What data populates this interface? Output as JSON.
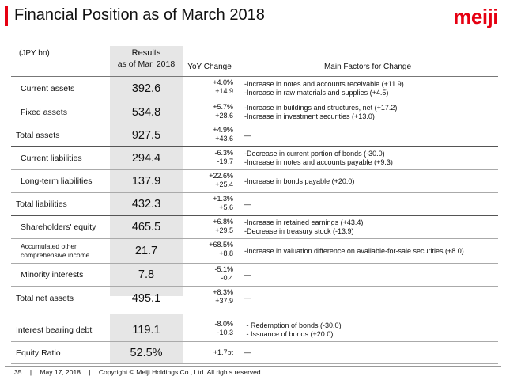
{
  "header": {
    "title": "Financial Position as of March 2018",
    "logo": "meiji"
  },
  "table": {
    "unit": "(JPY bn)",
    "col_results": "Results",
    "col_results_sub": "as of Mar. 2018",
    "col_yoy": "YoY Change",
    "col_factors": "Main Factors for Change",
    "rows": [
      {
        "label": "Current assets",
        "value": "392.6",
        "yoy_pct": "+4.0%",
        "yoy_abs": "+14.9",
        "factors": [
          "-Increase in notes and accounts receivable (+11.9)",
          "-Increase in raw materials and supplies (+4.5)"
        ]
      },
      {
        "label": "Fixed assets",
        "value": "534.8",
        "yoy_pct": "+5.7%",
        "yoy_abs": "+28.6",
        "factors": [
          "-Increase in buildings and structures, net (+17.2)",
          "-Increase in investment securities (+13.0)"
        ]
      },
      {
        "label": "Total assets",
        "value": "927.5",
        "yoy_pct": "+4.9%",
        "yoy_abs": "+43.6",
        "factors": [
          "—"
        ]
      },
      {
        "label": "Current liabilities",
        "value": "294.4",
        "yoy_pct": "-6.3%",
        "yoy_abs": "-19.7",
        "factors": [
          "-Decrease in current portion of bonds (-30.0)",
          "-Increase in notes and accounts payable (+9.3)"
        ]
      },
      {
        "label": "Long-term liabilities",
        "value": "137.9",
        "yoy_pct": "+22.6%",
        "yoy_abs": "+25.4",
        "factors": [
          "-Increase in bonds payable (+20.0)"
        ]
      },
      {
        "label": "Total liabilities",
        "value": "432.3",
        "yoy_pct": "+1.3%",
        "yoy_abs": "+5.6",
        "factors": [
          "—"
        ]
      },
      {
        "label": "Shareholders' equity",
        "value": "465.5",
        "yoy_pct": "+6.8%",
        "yoy_abs": "+29.5",
        "factors": [
          "-Increase in retained earnings (+43.4)",
          "-Decrease in treasury stock (-13.9)"
        ]
      },
      {
        "label": "Accumulated other comprehensive income",
        "value": "21.7",
        "yoy_pct": "+68.5%",
        "yoy_abs": "+8.8",
        "factors": [
          "-Increase in valuation difference on available-for-sale securities (+8.0)"
        ]
      },
      {
        "label": "Minority interests",
        "value": "7.8",
        "yoy_pct": "-5.1%",
        "yoy_abs": "-0.4",
        "factors": [
          "—"
        ]
      },
      {
        "label": "Total net assets",
        "value": "495.1",
        "yoy_pct": "+8.3%",
        "yoy_abs": "+37.9",
        "factors": [
          "—"
        ]
      },
      {
        "label": "Interest bearing debt",
        "value": "119.1",
        "yoy_pct": "-8.0%",
        "yoy_abs": "-10.3",
        "factors": [
          " - Redemption of bonds (-30.0)",
          " - Issuance of bonds (+20.0)"
        ]
      },
      {
        "label": "Equity Ratio",
        "value": "52.5%",
        "yoy_pct": "+1.7pt",
        "yoy_abs": "",
        "factors": [
          "—"
        ]
      }
    ]
  },
  "footer": {
    "page": "35",
    "date": "May 17, 2018",
    "copyright": "Copyright © Meiji Holdings Co., Ltd. All rights reserved."
  }
}
